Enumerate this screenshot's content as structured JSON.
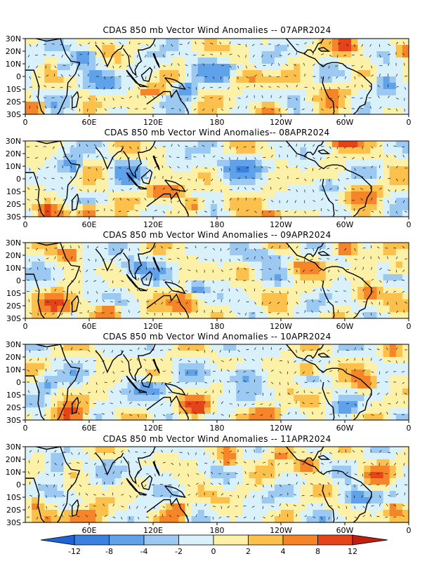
{
  "chart_data": [
    {
      "type": "heatmap",
      "title": "CDAS 850 mb Vector Wind Anomalies -- 07APR2024",
      "xticks": [
        "0",
        "60E",
        "120E",
        "180",
        "120W",
        "60W",
        "0"
      ],
      "yticks": [
        "30N",
        "20N",
        "10N",
        "0",
        "10S",
        "20S",
        "30S"
      ],
      "xlim": [
        0,
        360
      ],
      "ylim": [
        -30,
        30
      ],
      "blobs": [
        [
          10,
          -25,
          8,
          4,
          10
        ],
        [
          35,
          5,
          8,
          6,
          -6
        ],
        [
          55,
          15,
          10,
          6,
          -7
        ],
        [
          75,
          -5,
          15,
          8,
          -5
        ],
        [
          120,
          -12,
          12,
          5,
          8
        ],
        [
          150,
          -10,
          10,
          6,
          -6
        ],
        [
          180,
          5,
          30,
          8,
          -5
        ],
        [
          210,
          0,
          20,
          6,
          5
        ],
        [
          230,
          -25,
          15,
          4,
          6
        ],
        [
          290,
          -10,
          15,
          8,
          4
        ],
        [
          300,
          25,
          10,
          5,
          11
        ],
        [
          340,
          -5,
          12,
          8,
          -6
        ],
        [
          355,
          20,
          8,
          6,
          8
        ]
      ]
    },
    {
      "type": "heatmap",
      "title": "CDAS 850 mb Vector Wind Anomalies-- 08APR2024",
      "xticks": [
        "0",
        "60E",
        "120E",
        "180",
        "120W",
        "60W",
        "0"
      ],
      "yticks": [
        "30N",
        "20N",
        "10N",
        "0",
        "10S",
        "20S",
        "30S"
      ],
      "xlim": [
        0,
        360
      ],
      "ylim": [
        -30,
        30
      ],
      "blobs": [
        [
          20,
          -25,
          12,
          5,
          10
        ],
        [
          60,
          -25,
          10,
          5,
          9
        ],
        [
          45,
          10,
          10,
          8,
          -6
        ],
        [
          100,
          5,
          12,
          8,
          -5
        ],
        [
          135,
          -10,
          15,
          6,
          8
        ],
        [
          160,
          -20,
          10,
          5,
          7
        ],
        [
          200,
          10,
          30,
          8,
          -5
        ],
        [
          230,
          -28,
          15,
          4,
          6
        ],
        [
          300,
          28,
          12,
          4,
          11
        ],
        [
          320,
          -10,
          15,
          8,
          5
        ],
        [
          285,
          -5,
          10,
          6,
          -5
        ]
      ]
    },
    {
      "type": "heatmap",
      "title": "CDAS 850 mb Vector Wind Anomalies -- 09APR2024",
      "xticks": [
        "0",
        "60E",
        "120E",
        "180",
        "120W",
        "60W",
        "0"
      ],
      "yticks": [
        "30N",
        "20N",
        "10N",
        "0",
        "10S",
        "20S",
        "30S"
      ],
      "xlim": [
        0,
        360
      ],
      "ylim": [
        -30,
        30
      ],
      "blobs": [
        [
          30,
          -20,
          15,
          8,
          9
        ],
        [
          80,
          -25,
          10,
          5,
          7
        ],
        [
          40,
          20,
          10,
          6,
          6
        ],
        [
          100,
          10,
          15,
          8,
          -6
        ],
        [
          150,
          -20,
          12,
          8,
          9
        ],
        [
          160,
          -5,
          10,
          6,
          -6
        ],
        [
          220,
          20,
          20,
          6,
          -5
        ],
        [
          260,
          10,
          15,
          5,
          6
        ],
        [
          300,
          25,
          10,
          5,
          9
        ],
        [
          320,
          -10,
          10,
          6,
          5
        ],
        [
          350,
          10,
          10,
          6,
          6
        ]
      ]
    },
    {
      "type": "heatmap",
      "title": "CDAS 850 mb Vector Wind Anomalies -- 10APR2024",
      "xticks": [
        "0",
        "60E",
        "120E",
        "180",
        "120W",
        "60W",
        "0"
      ],
      "yticks": [
        "30N",
        "20N",
        "10N",
        "0",
        "10S",
        "20S",
        "30S"
      ],
      "xlim": [
        0,
        360
      ],
      "ylim": [
        -30,
        30
      ],
      "blobs": [
        [
          40,
          -25,
          15,
          6,
          10
        ],
        [
          20,
          0,
          10,
          8,
          -6
        ],
        [
          120,
          -5,
          15,
          6,
          -6
        ],
        [
          160,
          -20,
          12,
          6,
          10
        ],
        [
          200,
          5,
          20,
          8,
          -5
        ],
        [
          230,
          -25,
          15,
          5,
          7
        ],
        [
          265,
          10,
          12,
          5,
          9
        ],
        [
          320,
          0,
          10,
          8,
          7
        ],
        [
          300,
          -20,
          10,
          6,
          -5
        ],
        [
          345,
          25,
          10,
          5,
          6
        ]
      ]
    },
    {
      "type": "heatmap",
      "title": "CDAS 850 mb Vector Wind Anomalies -- 11APR2024",
      "xticks": [
        "60E",
        "120E",
        "180",
        "120W",
        "60W",
        "0"
      ],
      "yticks": [
        "30N",
        "20N",
        "10N",
        "0",
        "10S",
        "20S",
        "30S"
      ],
      "xlim": [
        0,
        360
      ],
      "ylim": [
        -30,
        30
      ],
      "blobs": [
        [
          55,
          -25,
          15,
          6,
          10
        ],
        [
          10,
          -15,
          8,
          6,
          6
        ],
        [
          30,
          15,
          10,
          8,
          -6
        ],
        [
          110,
          10,
          15,
          6,
          -5
        ],
        [
          145,
          -20,
          10,
          6,
          6
        ],
        [
          190,
          20,
          8,
          6,
          9
        ],
        [
          240,
          25,
          10,
          5,
          6
        ],
        [
          265,
          15,
          10,
          5,
          8
        ],
        [
          310,
          -10,
          15,
          6,
          -6
        ],
        [
          330,
          5,
          10,
          6,
          7
        ],
        [
          345,
          -20,
          10,
          6,
          6
        ]
      ]
    }
  ],
  "colorbar": {
    "levels": [
      "-12",
      "-8",
      "-4",
      "-2",
      "0",
      "2",
      "4",
      "8",
      "12"
    ],
    "colors": [
      "#1f63d6",
      "#3b82e0",
      "#60a2ea",
      "#9cc9f2",
      "#d9f1fb",
      "#fdf1a8",
      "#fcc04d",
      "#f6852a",
      "#e5431a",
      "#c31c10"
    ]
  }
}
